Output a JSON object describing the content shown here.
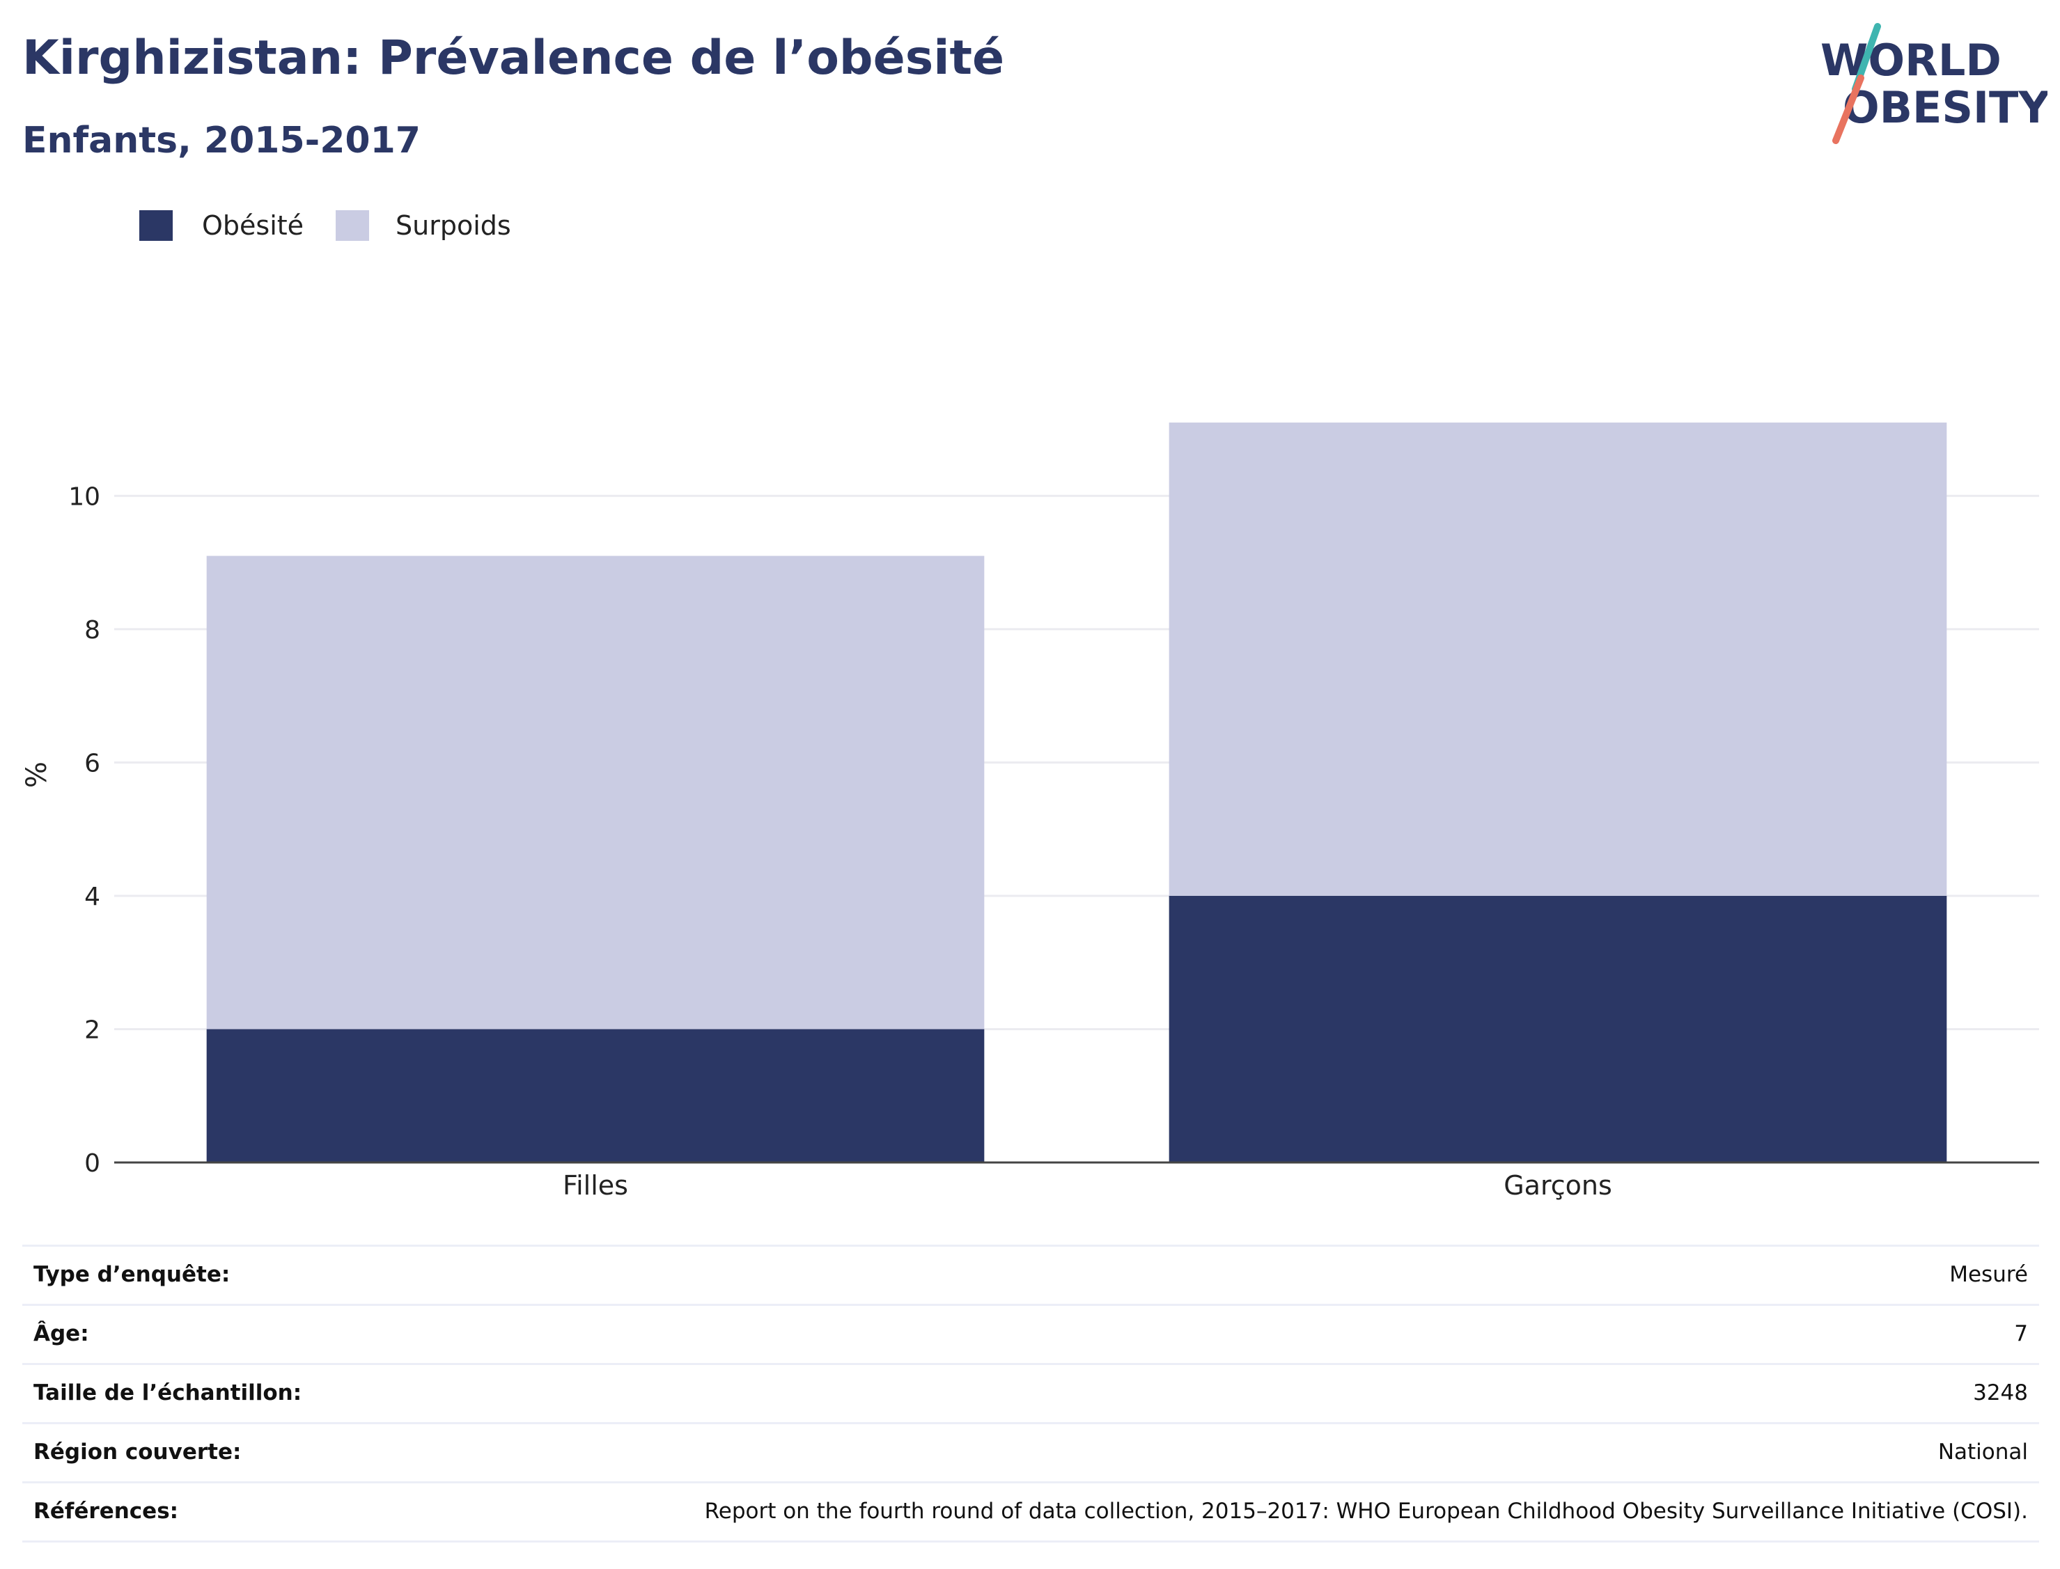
{
  "title": "Kirghizistan: Prévalence de l’obésité",
  "subtitle": "Enfants, 2015-2017",
  "logo": {
    "line1": "WORLD",
    "line2": "OBESITY"
  },
  "colors": {
    "obesite": "#2b3765",
    "surpoids": "#cacce3",
    "title": "#2b3765",
    "accent_teal": "#3fb5b0",
    "accent_red": "#e8735f"
  },
  "chart_data": {
    "type": "bar",
    "stacked": true,
    "categories": [
      "Filles",
      "Garçons"
    ],
    "series": [
      {
        "name": "Obésité",
        "values": [
          2.0,
          4.0
        ],
        "color": "#2b3765"
      },
      {
        "name": "Surpoids",
        "values": [
          7.1,
          7.1
        ],
        "color": "#cacce3"
      }
    ],
    "ylabel": "%",
    "ylim": [
      0,
      11.8
    ],
    "yticks": [
      0,
      2,
      4,
      6,
      8,
      10
    ],
    "grid": true,
    "legend_position": "top-left"
  },
  "info_table": [
    {
      "label": "Type d’enquête:",
      "value": "Mesuré"
    },
    {
      "label": "Âge:",
      "value": "7"
    },
    {
      "label": "Taille de l’échantillon:",
      "value": "3248"
    },
    {
      "label": "Région couverte:",
      "value": "National"
    },
    {
      "label": "Références:",
      "value": "Report on the fourth round of data collection, 2015–2017: WHO European Childhood Obesity Surveillance Initiative (COSI)."
    }
  ]
}
